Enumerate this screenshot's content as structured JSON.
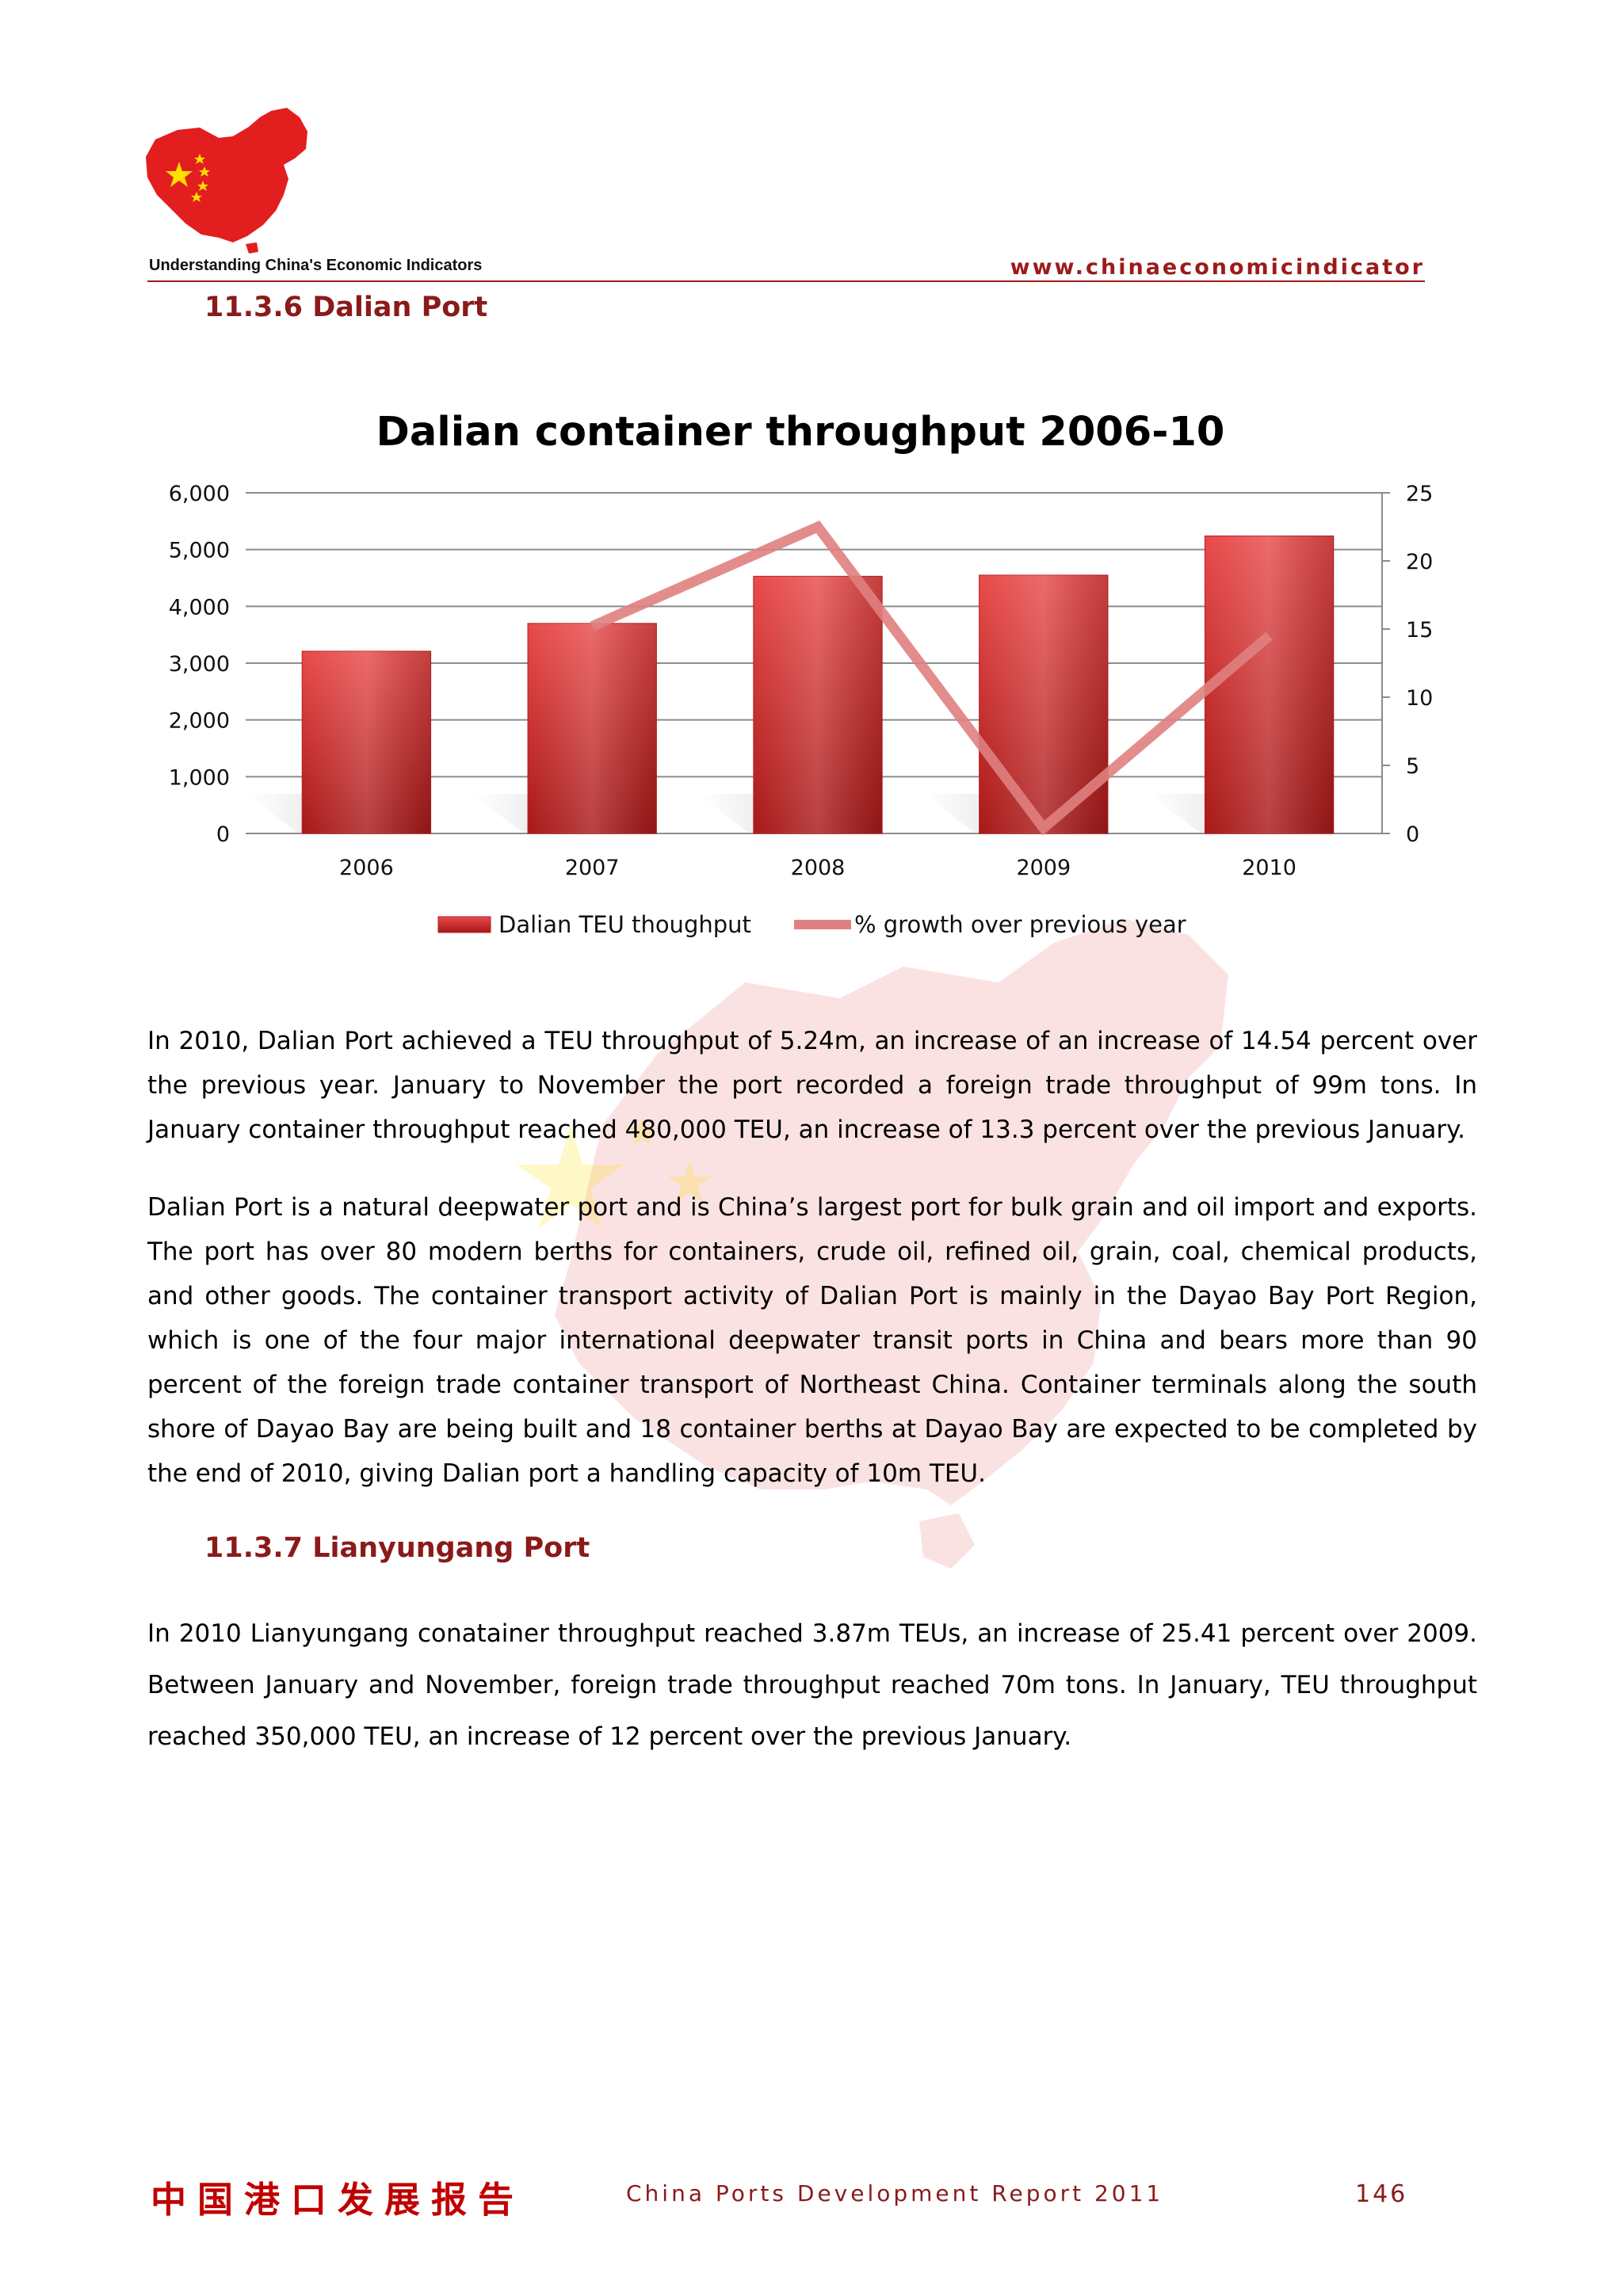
{
  "header": {
    "logo_caption": "Understanding China's Economic Indicators",
    "url": "www.chinaeconomicindicator"
  },
  "section_dalian": {
    "heading": "11.3.6  Dalian Port"
  },
  "chart_data": {
    "type": "bar",
    "title": "Dalian container throughput 2006-10",
    "categories": [
      "2006",
      "2007",
      "2008",
      "2009",
      "2010"
    ],
    "series": [
      {
        "name": "Dalian TEU thoughput",
        "kind": "bar",
        "axis": "left",
        "values": [
          3210,
          3700,
          4530,
          4550,
          5240
        ],
        "color": "#d92b2b"
      },
      {
        "name": "% growth over previous year",
        "kind": "line",
        "axis": "right",
        "values": [
          null,
          15.2,
          22.5,
          0.4,
          14.5
        ],
        "color": "#e08080"
      }
    ],
    "ylim_left": [
      0,
      6000
    ],
    "yticks_left": [
      "0",
      "1,000",
      "2,000",
      "3,000",
      "4,000",
      "5,000",
      "6,000"
    ],
    "ylim_right": [
      0,
      25
    ],
    "yticks_right": [
      "0",
      "5",
      "10",
      "15",
      "20",
      "25"
    ],
    "grid": true,
    "legend": "bottom"
  },
  "paragraphs_dalian": [
    "In 2010, Dalian Port achieved a TEU throughput of 5.24m, an increase of an increase of 14.54 percent over the previous year. January to November the port recorded a foreign trade throughput of 99m tons. In January container throughput reached 480,000 TEU, an increase of 13.3 percent over the previous January.",
    "Dalian Port is a natural deepwater port and is China’s largest port for bulk grain and oil import and exports. The port has over 80 modern berths for containers, crude oil, refined oil, grain, coal, chemical products, and other goods. The container transport activity of Dalian Port is mainly in the Dayao Bay Port Region, which is one of the four major international deepwater transit ports in China and bears more than 90 percent of the foreign trade container transport of Northeast China. Container terminals along the south shore of Dayao Bay are being built and 18 container berths at Dayao Bay are expected to be completed by the end of 2010, giving Dalian port a handling capacity of 10m TEU."
  ],
  "section_lianyungang": {
    "heading": "11.3.7  Lianyungang Port",
    "paragraph": "In 2010 Lianyungang conatainer throughput reached 3.87m TEUs, an increase of 25.41 percent over 2009. Between January and November, foreign trade throughput reached 70m tons. In January, TEU throughput reached 350,000 TEU, an increase of 12 percent over the previous January."
  },
  "footer": {
    "chinese_title": "中国港口发展报告",
    "report_title": "China Ports Development Report 2011",
    "page_number": "146"
  },
  "colors": {
    "accent": "#9b1b1b",
    "bar": "#d92b2b",
    "line": "#e08080",
    "flag_red": "#e31e1e",
    "flag_yellow": "#ffde00"
  }
}
